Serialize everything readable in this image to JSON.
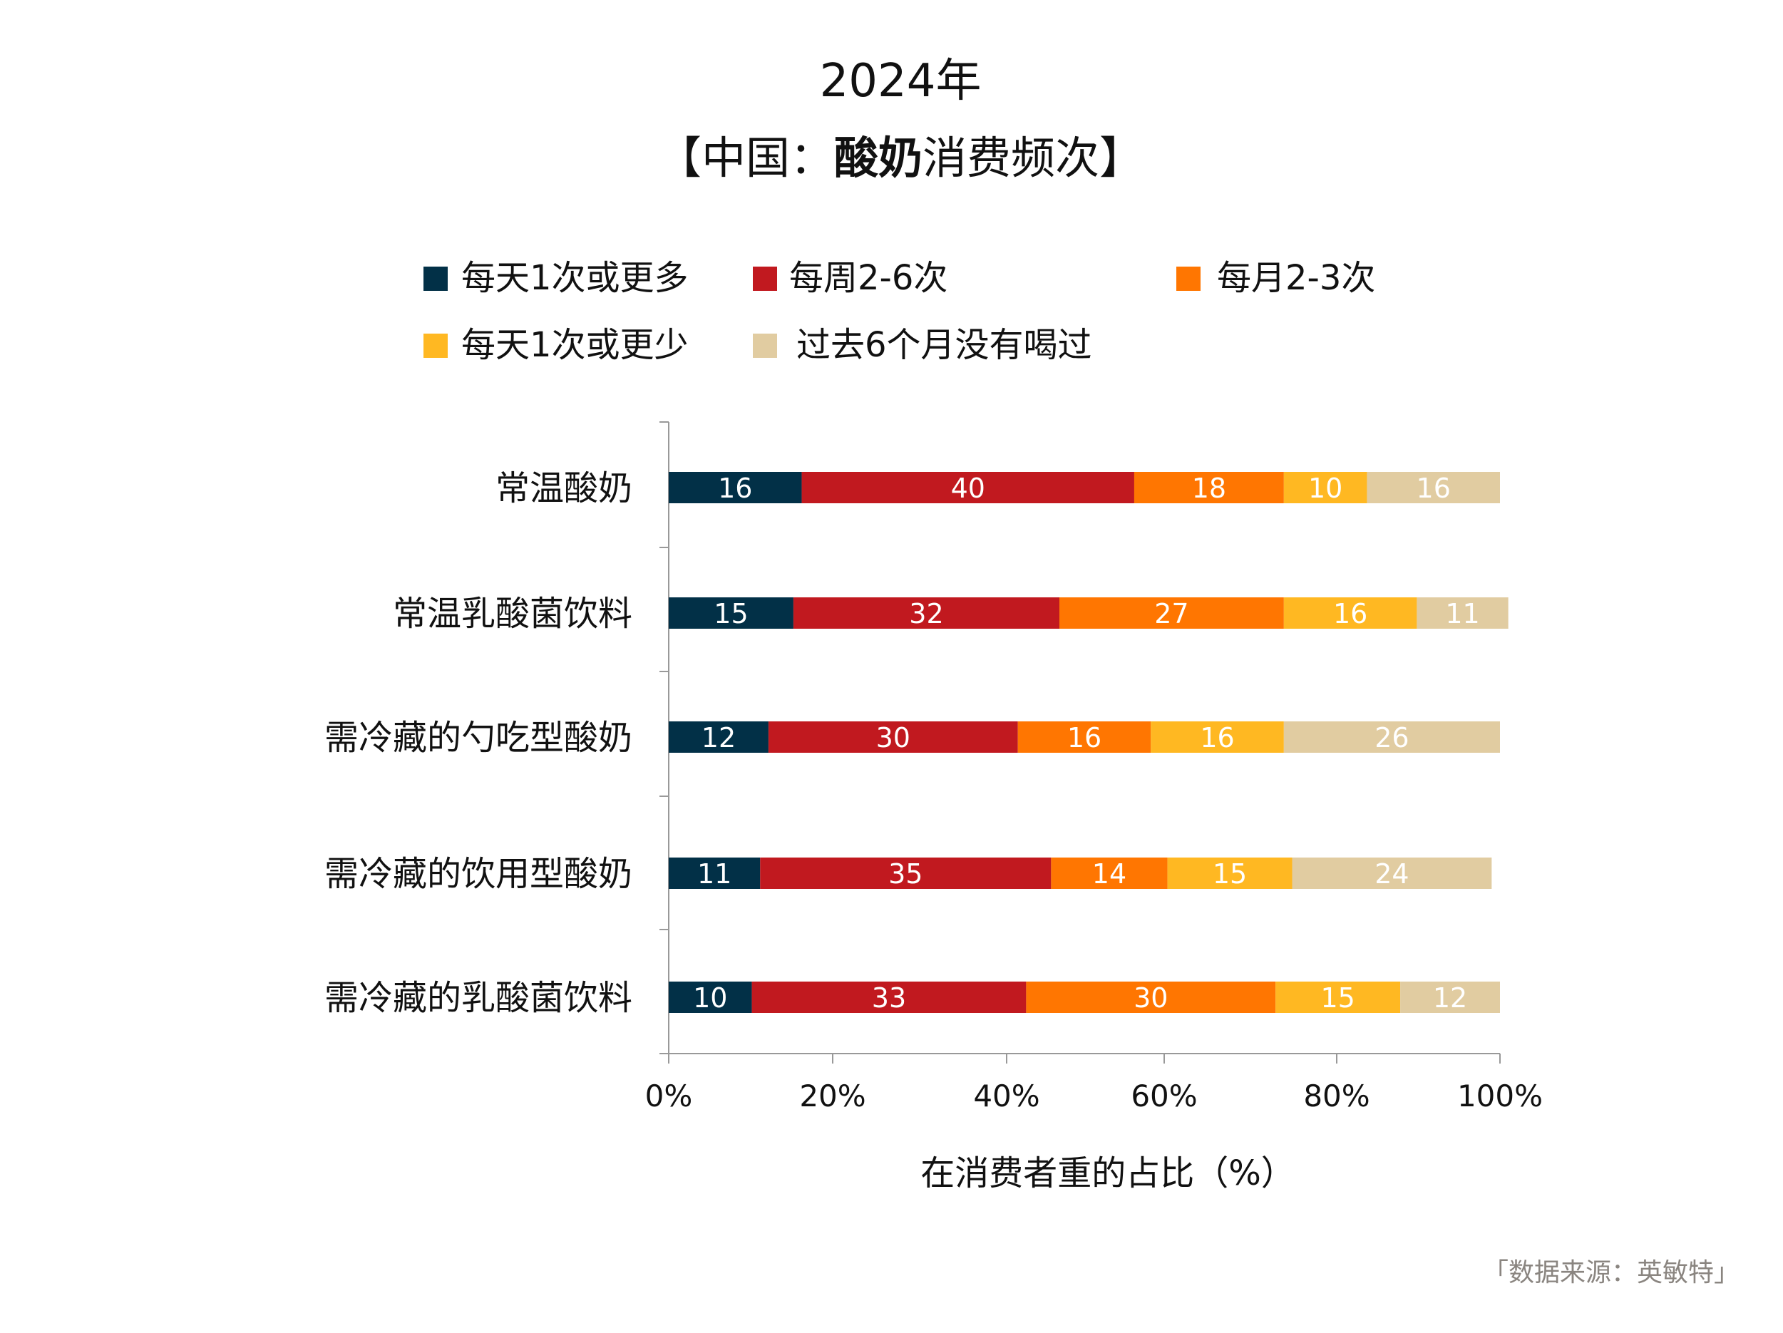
{
  "chart_data": {
    "type": "bar",
    "orientation": "horizontal",
    "stacked": true,
    "title": "2024年",
    "subtitle_prefix": "【中国：",
    "subtitle_bold": "酸奶",
    "subtitle_suffix": "消费频次】",
    "xlabel": "在消费者重的占比（%）",
    "ylabel": "",
    "xlim": [
      0,
      100
    ],
    "x_ticks": [
      "0%",
      "20%",
      "40%",
      "60%",
      "80%",
      "100%"
    ],
    "legend_position": "top",
    "categories": [
      "常温酸奶",
      "常温乳酸菌饮料",
      "需冷藏的勺吃型酸奶",
      "需冷藏的饮用型酸奶",
      "需冷藏的乳酸菌饮料"
    ],
    "series": [
      {
        "name": "每天1次或更多",
        "color": "#023047",
        "values": [
          16,
          15,
          12,
          11,
          10
        ]
      },
      {
        "name": "每周2-6次",
        "color": "#C1191F",
        "values": [
          40,
          32,
          30,
          35,
          33
        ]
      },
      {
        "name": "每月2-3次",
        "color": "#FF7601",
        "values": [
          18,
          27,
          16,
          14,
          30
        ]
      },
      {
        "name": "每天1次或更少",
        "color": "#FFB822",
        "values": [
          10,
          16,
          16,
          15,
          15
        ]
      },
      {
        "name": "过去6个月没有喝过",
        "color": "#E1CCA1",
        "values": [
          16,
          11,
          26,
          24,
          12
        ]
      }
    ],
    "source": "「数据来源：英敏特」"
  }
}
